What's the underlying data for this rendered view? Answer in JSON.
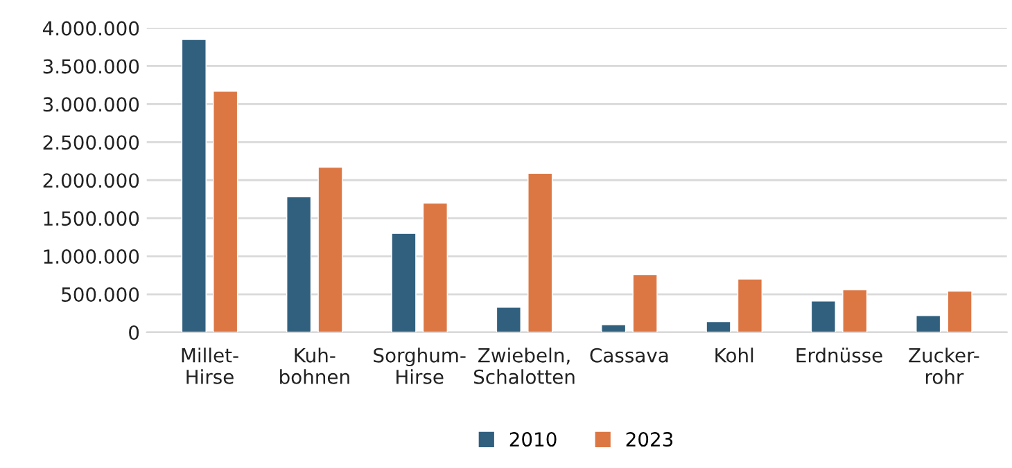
{
  "chart_data": {
    "type": "bar",
    "categories": [
      "Millet-\nHirse",
      "Kuh-\nbohnen",
      "Sorghum-\nHirse",
      "Zwiebeln,\nSchalotten",
      "Cassava",
      "Kohl",
      "Erdnüsse",
      "Zucker-\nrohr"
    ],
    "series": [
      {
        "name": "2010",
        "color": "#31607f",
        "values": [
          3850000,
          1780000,
          1300000,
          330000,
          100000,
          140000,
          410000,
          220000
        ]
      },
      {
        "name": "2023",
        "color": "#dc7744",
        "values": [
          3170000,
          2170000,
          1700000,
          2090000,
          760000,
          700000,
          560000,
          540000
        ]
      }
    ],
    "ylim": [
      0,
      4000000
    ],
    "yticks": [
      {
        "value": 0,
        "label": "0"
      },
      {
        "value": 500000,
        "label": "500.000"
      },
      {
        "value": 1000000,
        "label": "1.000.000"
      },
      {
        "value": 1500000,
        "label": "1.500.000"
      },
      {
        "value": 2000000,
        "label": "2.000.000"
      },
      {
        "value": 2500000,
        "label": "2.500.000"
      },
      {
        "value": 3000000,
        "label": "3.000.000"
      },
      {
        "value": 3500000,
        "label": "3.500.000"
      },
      {
        "value": 4000000,
        "label": "4.000.000"
      }
    ],
    "grid": "y",
    "legend": "bottom"
  }
}
